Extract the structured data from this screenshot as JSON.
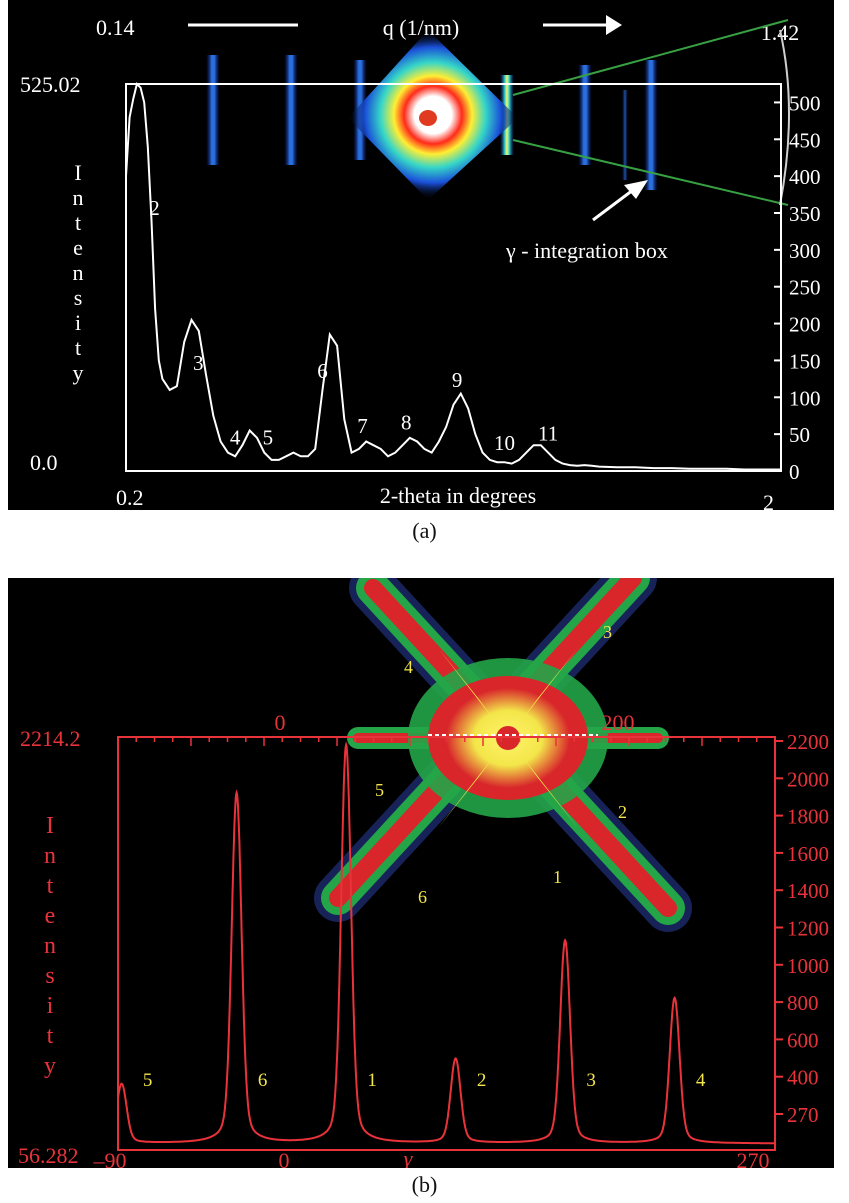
{
  "chart_data": [
    {
      "panel": "a",
      "type": "line",
      "top_axis": {
        "label": "q (1/nm)",
        "min_label": "0.14",
        "max_label": "1.42"
      },
      "xlabel": "2-theta in degrees",
      "x_min_label": "0.2",
      "x_max_label": "2",
      "xlim": [
        0.2,
        2
      ],
      "ylabel": "Intensity",
      "y_max_label": "525.02",
      "y_min_label": "0.0",
      "ylim": [
        0,
        525
      ],
      "right_ticks": [
        500,
        450,
        400,
        350,
        300,
        250,
        200,
        150,
        100,
        50,
        0
      ],
      "annotation": "γ - integration box",
      "series": [
        {
          "x": [
            0.2,
            0.21,
            0.22,
            0.23,
            0.24,
            0.25,
            0.26,
            0.27,
            0.28,
            0.29,
            0.3,
            0.32,
            0.34,
            0.36,
            0.38,
            0.4,
            0.42,
            0.44,
            0.46,
            0.48,
            0.5,
            0.52,
            0.54,
            0.56,
            0.58,
            0.6,
            0.62,
            0.64,
            0.66,
            0.68,
            0.7,
            0.72,
            0.74,
            0.76,
            0.78,
            0.8,
            0.82,
            0.84,
            0.86,
            0.88,
            0.9,
            0.92,
            0.94,
            0.96,
            0.98,
            1.0,
            1.02,
            1.04,
            1.06,
            1.08,
            1.1,
            1.12,
            1.14,
            1.16,
            1.18,
            1.2,
            1.22,
            1.24,
            1.26,
            1.28,
            1.3,
            1.32,
            1.34,
            1.36,
            1.38,
            1.4,
            1.42,
            1.44,
            1.46,
            1.48,
            1.5,
            1.55,
            1.6,
            1.65,
            1.7,
            1.75,
            1.8,
            1.85,
            1.9,
            1.95,
            2.0
          ],
          "y": [
            400,
            480,
            505,
            525,
            520,
            500,
            440,
            340,
            220,
            150,
            125,
            110,
            115,
            175,
            205,
            190,
            130,
            75,
            40,
            25,
            20,
            35,
            55,
            45,
            25,
            15,
            15,
            20,
            25,
            20,
            20,
            30,
            110,
            185,
            170,
            70,
            25,
            30,
            40,
            35,
            30,
            20,
            25,
            35,
            45,
            40,
            30,
            25,
            40,
            60,
            90,
            105,
            85,
            50,
            25,
            15,
            12,
            12,
            10,
            15,
            25,
            35,
            35,
            25,
            15,
            10,
            8,
            7,
            8,
            7,
            6,
            5,
            5,
            4,
            4,
            3,
            3,
            3,
            2,
            2,
            2
          ]
        }
      ],
      "peak_labels": [
        {
          "label": "2",
          "x": 0.24
        },
        {
          "label": "3",
          "x": 0.36
        },
        {
          "label": "4",
          "x": 0.5
        },
        {
          "label": "5",
          "x": 0.59
        },
        {
          "label": "6",
          "x": 0.74
        },
        {
          "label": "7",
          "x": 0.85
        },
        {
          "label": "8",
          "x": 0.97
        },
        {
          "label": "9",
          "x": 1.11
        },
        {
          "label": "10",
          "x": 1.24
        },
        {
          "label": "11",
          "x": 1.36
        }
      ],
      "colors": {
        "axes": "#ffffff",
        "trace": "#ffffff",
        "guide": "#37a043"
      }
    },
    {
      "panel": "b",
      "type": "line",
      "top_axis": {
        "ticks": [
          {
            "label": "0"
          },
          {
            "label": "200"
          }
        ]
      },
      "xlabel": "γ",
      "x_tick_labels": [
        "–90",
        "0",
        "270"
      ],
      "xlim": [
        -90,
        270
      ],
      "ylabel": "Intensity",
      "y_max_label": "2214.2",
      "y_min_label": "56.282",
      "ylim": [
        56.282,
        2214.2
      ],
      "right_ticks": [
        2200,
        2000,
        1800,
        1600,
        1400,
        1200,
        1000,
        800,
        600,
        400,
        270
      ],
      "peaks": [
        {
          "label": "5",
          "center": -88,
          "height": 400
        },
        {
          "label": "6",
          "center": -25,
          "height": 1920
        },
        {
          "label": "1",
          "center": 35,
          "height": 2170
        },
        {
          "label": "2",
          "center": 95,
          "height": 530
        },
        {
          "label": "3",
          "center": 155,
          "height": 1150
        },
        {
          "label": "4",
          "center": 215,
          "height": 850
        }
      ],
      "baseline": 90,
      "pattern_labels": [
        "1",
        "2",
        "3",
        "4",
        "5",
        "6"
      ],
      "colors": {
        "axes": "#e8333a",
        "trace": "#e8333a",
        "labels": "#f3e64a"
      }
    }
  ],
  "captions": {
    "a": "(a)",
    "b": "(b)"
  }
}
